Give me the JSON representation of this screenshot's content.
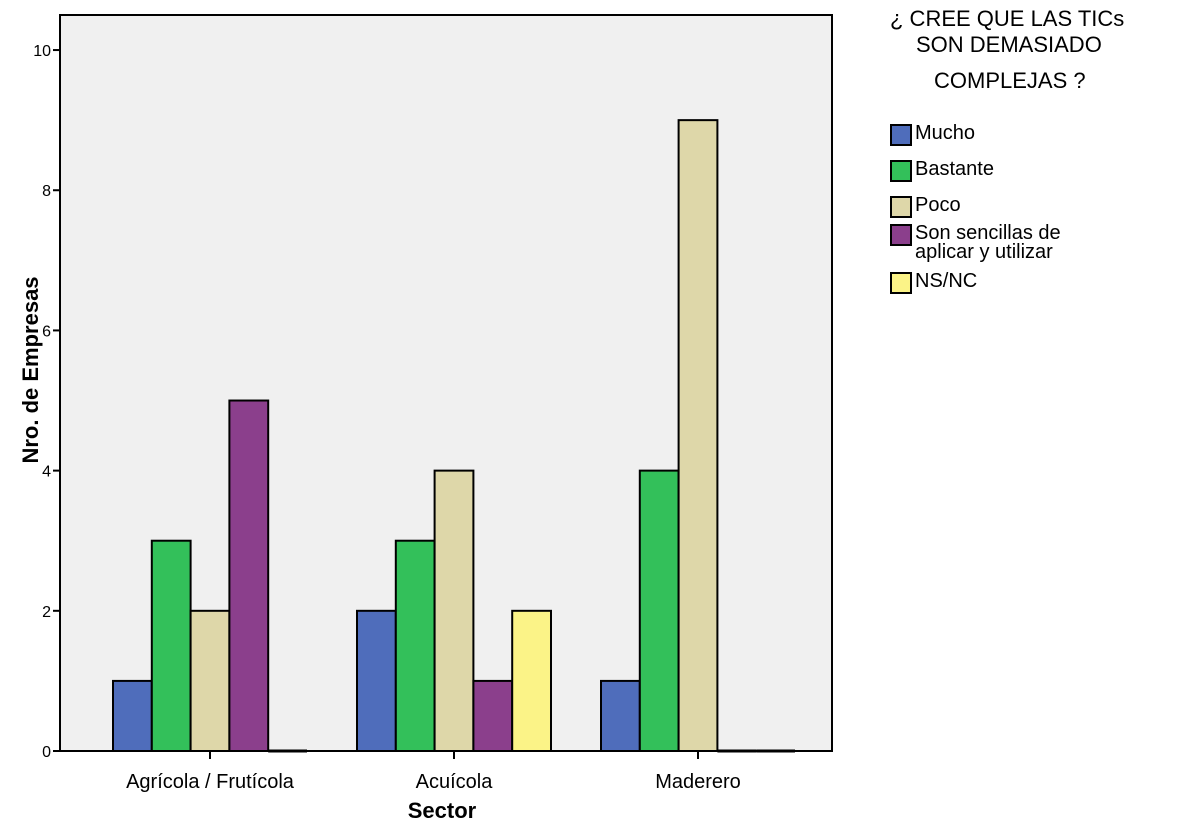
{
  "chart_data": {
    "type": "bar",
    "title": "",
    "xlabel": "Sector",
    "ylabel": "Nro. de Empresas",
    "categories": [
      "Agrícola / Frutícola",
      "Acuícola",
      "Maderero"
    ],
    "ylim": [
      0,
      10.5
    ],
    "yticks": [
      "0",
      "2",
      "4",
      "6",
      "8",
      "10"
    ],
    "grid": false,
    "legend_position": "right",
    "legend_title": [
      "¿ CREE QUE LAS TICs",
      "SON DEMASIADO",
      "COMPLEJAS ?"
    ],
    "series": [
      {
        "name": "Mucho",
        "color": "#4f6dbb",
        "values": [
          1,
          2,
          1
        ]
      },
      {
        "name": "Bastante",
        "color": "#33c05a",
        "values": [
          3,
          3,
          4
        ]
      },
      {
        "name": "Poco",
        "color": "#ded7a9",
        "values": [
          2,
          4,
          9
        ]
      },
      {
        "name": "Son sencillas de\naplicar y utilizar",
        "color": "#8b3f8c",
        "values": [
          5,
          1,
          0
        ]
      },
      {
        "name": "NS/NC",
        "color": "#fbf387",
        "values": [
          0,
          2,
          0
        ]
      }
    ],
    "plot_background": "#f0f0f0"
  }
}
